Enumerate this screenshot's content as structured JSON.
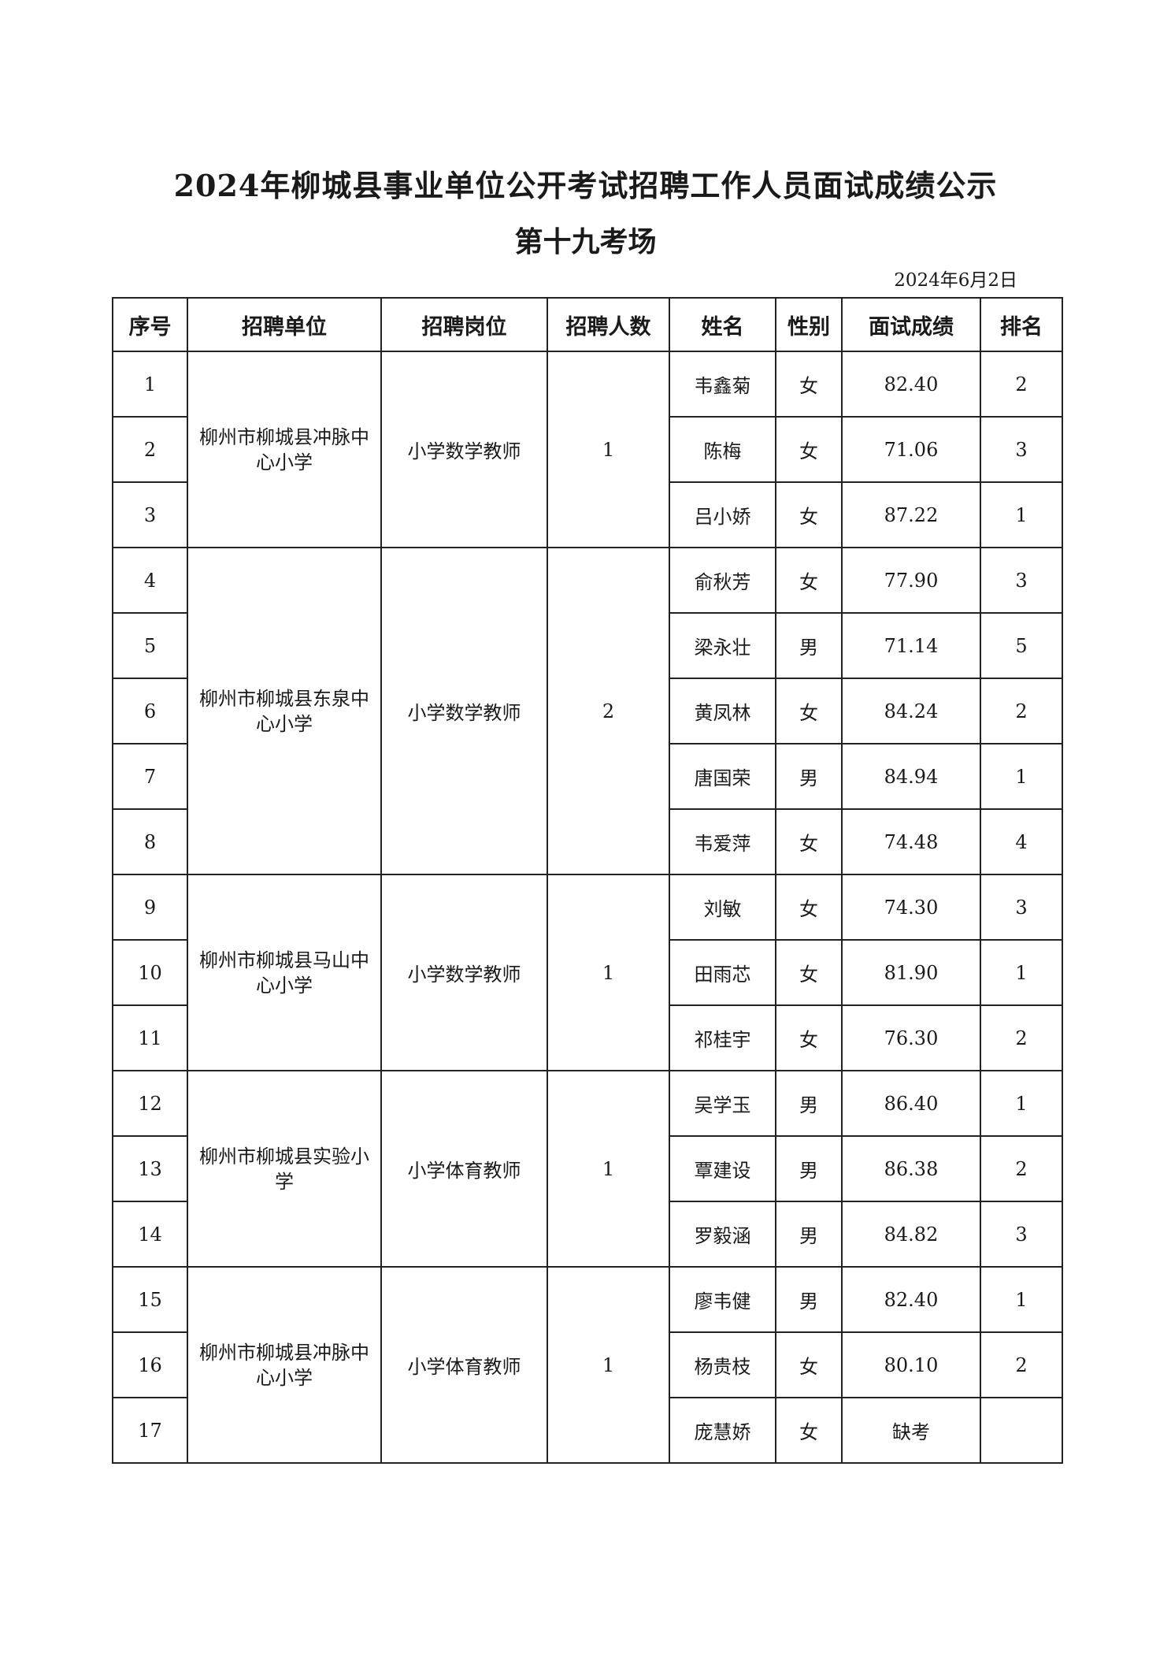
{
  "title": "2024年柳城县事业单位公开考试招聘工作人员面试成绩公示",
  "subtitle": "第十九考场",
  "date": "2024年6月2日",
  "headers": [
    "序号",
    "招聘单位",
    "招聘岗位",
    "招聘人数",
    "姓名",
    "性别",
    "面试成绩",
    "排名"
  ],
  "groups": [
    {
      "unit": "柳州市柳城县冲脉中心小学",
      "post": "小学数学教师",
      "count": "1",
      "rows": [
        {
          "no": "1",
          "name": "韦鑫菊",
          "gender": "女",
          "score": "82.40",
          "rank": "2"
        },
        {
          "no": "2",
          "name": "陈梅",
          "gender": "女",
          "score": "71.06",
          "rank": "3"
        },
        {
          "no": "3",
          "name": "吕小娇",
          "gender": "女",
          "score": "87.22",
          "rank": "1"
        }
      ]
    },
    {
      "unit": "柳州市柳城县东泉中心小学",
      "post": "小学数学教师",
      "count": "2",
      "rows": [
        {
          "no": "4",
          "name": "俞秋芳",
          "gender": "女",
          "score": "77.90",
          "rank": "3"
        },
        {
          "no": "5",
          "name": "梁永壮",
          "gender": "男",
          "score": "71.14",
          "rank": "5"
        },
        {
          "no": "6",
          "name": "黄凤林",
          "gender": "女",
          "score": "84.24",
          "rank": "2"
        },
        {
          "no": "7",
          "name": "唐国荣",
          "gender": "男",
          "score": "84.94",
          "rank": "1"
        },
        {
          "no": "8",
          "name": "韦爱萍",
          "gender": "女",
          "score": "74.48",
          "rank": "4"
        }
      ]
    },
    {
      "unit": "柳州市柳城县马山中心小学",
      "post": "小学数学教师",
      "count": "1",
      "rows": [
        {
          "no": "9",
          "name": "刘敏",
          "gender": "女",
          "score": "74.30",
          "rank": "3"
        },
        {
          "no": "10",
          "name": "田雨芯",
          "gender": "女",
          "score": "81.90",
          "rank": "1"
        },
        {
          "no": "11",
          "name": "祁桂宇",
          "gender": "女",
          "score": "76.30",
          "rank": "2"
        }
      ]
    },
    {
      "unit": "柳州市柳城县实验小学",
      "post": "小学体育教师",
      "count": "1",
      "rows": [
        {
          "no": "12",
          "name": "吴学玉",
          "gender": "男",
          "score": "86.40",
          "rank": "1"
        },
        {
          "no": "13",
          "name": "覃建设",
          "gender": "男",
          "score": "86.38",
          "rank": "2"
        },
        {
          "no": "14",
          "name": "罗毅涵",
          "gender": "男",
          "score": "84.82",
          "rank": "3"
        }
      ]
    },
    {
      "unit": "柳州市柳城县冲脉中心小学",
      "post": "小学体育教师",
      "count": "1",
      "rows": [
        {
          "no": "15",
          "name": "廖韦健",
          "gender": "男",
          "score": "82.40",
          "rank": "1"
        },
        {
          "no": "16",
          "name": "杨贵枝",
          "gender": "女",
          "score": "80.10",
          "rank": "2"
        },
        {
          "no": "17",
          "name": "庞慧娇",
          "gender": "女",
          "score": "缺考",
          "rank": ""
        }
      ]
    }
  ]
}
